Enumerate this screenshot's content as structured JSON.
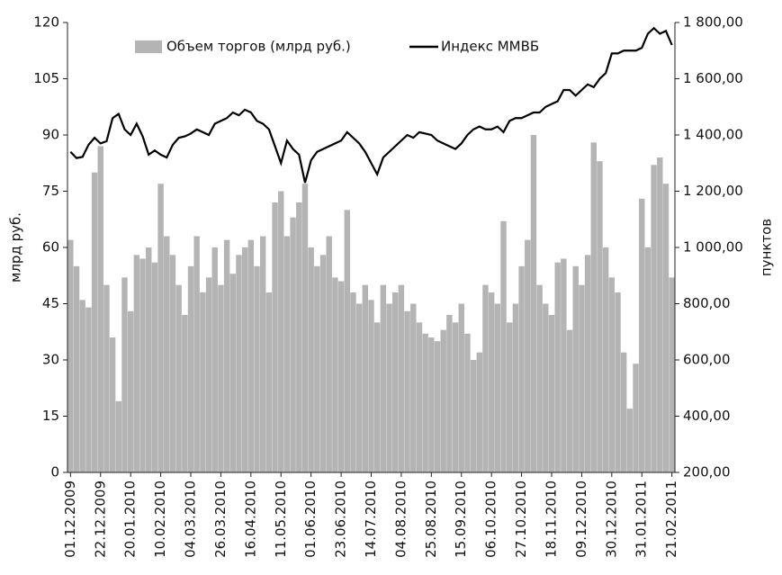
{
  "chart_data": {
    "type": "bar_line",
    "categories": [
      "01.12.2009",
      null,
      null,
      null,
      null,
      "22.12.2009",
      null,
      null,
      null,
      null,
      "20.01.2010",
      null,
      null,
      null,
      null,
      "10.02.2010",
      null,
      null,
      null,
      null,
      "04.03.2010",
      null,
      null,
      null,
      null,
      "26.03.2010",
      null,
      null,
      null,
      null,
      "16.04.2010",
      null,
      null,
      null,
      null,
      "11.05.2010",
      null,
      null,
      null,
      null,
      "01.06.2010",
      null,
      null,
      null,
      null,
      "23.06.2010",
      null,
      null,
      null,
      null,
      "14.07.2010",
      null,
      null,
      null,
      null,
      "04.08.2010",
      null,
      null,
      null,
      null,
      "25.08.2010",
      null,
      null,
      null,
      null,
      "15.09.2010",
      null,
      null,
      null,
      null,
      "06.10.2010",
      null,
      null,
      null,
      null,
      "27.10.2010",
      null,
      null,
      null,
      null,
      "18.11.2010",
      null,
      null,
      null,
      null,
      "09.12.2010",
      null,
      null,
      null,
      null,
      "30.12.2010",
      null,
      null,
      null,
      null,
      "31.01.2011",
      null,
      null,
      null,
      null,
      "21.02.2011"
    ],
    "series": [
      {
        "name": "Объем торгов (млрд руб.)",
        "color": "#b4b4b4",
        "type": "bar",
        "values": [
          62,
          55,
          46,
          44,
          80,
          87,
          50,
          36,
          19,
          52,
          43,
          58,
          57,
          60,
          56,
          77,
          63,
          58,
          50,
          42,
          55,
          63,
          48,
          52,
          60,
          50,
          62,
          53,
          58,
          60,
          62,
          55,
          63,
          48,
          72,
          75,
          63,
          68,
          72,
          77,
          60,
          55,
          58,
          63,
          52,
          51,
          70,
          48,
          45,
          50,
          46,
          40,
          50,
          45,
          48,
          50,
          43,
          45,
          40,
          37,
          36,
          35,
          38,
          42,
          40,
          45,
          37,
          30,
          32,
          50,
          48,
          45,
          67,
          40,
          45,
          55,
          62,
          90,
          50,
          45,
          42,
          56,
          57,
          38,
          55,
          50,
          58,
          88,
          83,
          60,
          52,
          48,
          32,
          17,
          29,
          73,
          60,
          82,
          84,
          77,
          52
        ]
      },
      {
        "name": "Индекс ММВБ",
        "color": "#000000",
        "type": "line",
        "axis": "y2",
        "values": [
          1340,
          1318,
          1322,
          1365,
          1390,
          1370,
          1378,
          1460,
          1475,
          1420,
          1400,
          1440,
          1395,
          1330,
          1345,
          1330,
          1320,
          1365,
          1390,
          1395,
          1405,
          1420,
          1410,
          1400,
          1440,
          1450,
          1460,
          1480,
          1470,
          1490,
          1480,
          1450,
          1440,
          1420,
          1360,
          1300,
          1380,
          1350,
          1330,
          1230,
          1310,
          1340,
          1350,
          1360,
          1370,
          1380,
          1410,
          1390,
          1370,
          1340,
          1300,
          1260,
          1320,
          1340,
          1360,
          1380,
          1400,
          1390,
          1410,
          1405,
          1400,
          1380,
          1370,
          1360,
          1350,
          1370,
          1400,
          1420,
          1430,
          1420,
          1420,
          1430,
          1410,
          1450,
          1460,
          1460,
          1470,
          1480,
          1480,
          1500,
          1510,
          1520,
          1560,
          1560,
          1540,
          1560,
          1580,
          1570,
          1600,
          1620,
          1690,
          1690,
          1700,
          1700,
          1700,
          1710,
          1760,
          1780,
          1760,
          1770,
          1720
        ]
      }
    ],
    "ylabel": "млрд руб.",
    "y2label": "пунктов",
    "ylim": [
      0,
      120
    ],
    "yticks": [
      0,
      15,
      30,
      45,
      60,
      75,
      90,
      105,
      120
    ],
    "y2lim": [
      200,
      1800
    ],
    "y2ticks": [
      {
        "value": 200,
        "label": "200,00"
      },
      {
        "value": 400,
        "label": "400,00"
      },
      {
        "value": 600,
        "label": "600,00"
      },
      {
        "value": 800,
        "label": "800,00"
      },
      {
        "value": 1000,
        "label": "1 000,00"
      },
      {
        "value": 1200,
        "label": "1 200,00"
      },
      {
        "value": 1400,
        "label": "1 400,00"
      },
      {
        "value": 1600,
        "label": "1 600,00"
      },
      {
        "value": 1800,
        "label": "1 800,00"
      }
    ],
    "legend": "top"
  }
}
